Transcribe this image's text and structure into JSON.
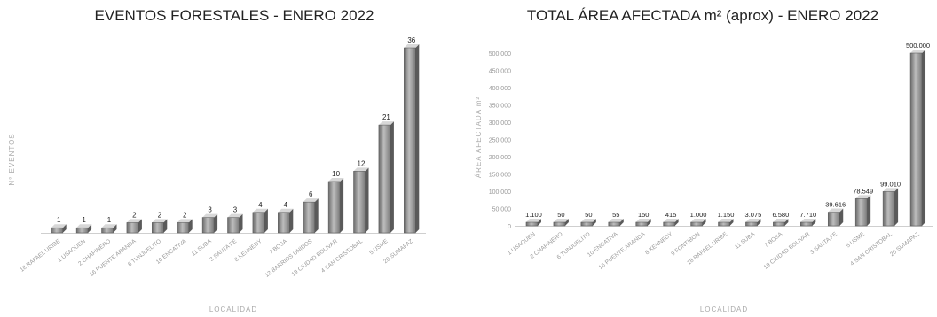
{
  "chart_data": [
    {
      "type": "bar",
      "title": "EVENTOS FORESTALES - ENERO 2022",
      "xlabel": "LOCALIDAD",
      "ylabel": "N° EVENTOS",
      "categories": [
        "18 RAFAEL URIBE",
        "1 USAQUEN",
        "2 CHAPINERO",
        "16 PUENTE ARANDA",
        "6 TUNJUELITO",
        "10 ENGATIVA",
        "11 SUBA",
        "3 SANTA FE",
        "8 KENNEDY",
        "7 BOSA",
        "12 BARRIOS UNIDOS",
        "19 CIUDAD BOLIVAR",
        "4 SAN CRISTOBAL",
        "5 USME",
        "20 SUMAPAZ"
      ],
      "values": [
        1,
        1,
        1,
        2,
        2,
        2,
        3,
        3,
        4,
        4,
        6,
        10,
        12,
        21,
        36
      ],
      "ylim": [
        0,
        36
      ],
      "grid": false
    },
    {
      "type": "bar",
      "title": "TOTAL ÁREA AFECTADA m² (aprox) - ENERO 2022",
      "xlabel": "LOCALIDAD",
      "ylabel": "ÁREA AFECTADA m²",
      "categories": [
        "1 USAQUEN",
        "2 CHAPINERO",
        "6 TUNJUELITO",
        "10 ENGATIVA",
        "16 PUENTE ARANDA",
        "8 KENNEDY",
        "9 FONTIBON",
        "18 RAFAEL URIBE",
        "11 SUBA",
        "7 BOSA",
        "19 CIUDAD BOLIVAR",
        "3 SANTA FE",
        "5 USME",
        "4 SAN CRISTOBAL",
        "20 SUMAPAZ"
      ],
      "values": [
        1100,
        50,
        50,
        55,
        150,
        415,
        1000,
        1150,
        3075,
        6580,
        7710,
        39616,
        78549,
        99010,
        500000
      ],
      "value_labels": [
        "1.100",
        "50",
        "50",
        "55",
        "150",
        "415",
        "1.000",
        "1.150",
        "3.075",
        "6.580",
        "7.710",
        "39.616",
        "78.549",
        "99.010",
        "500.000"
      ],
      "yticks": [
        0,
        50000,
        100000,
        150000,
        200000,
        250000,
        300000,
        350000,
        400000,
        450000,
        500000
      ],
      "ytick_labels": [
        "0",
        "50.000",
        "100.000",
        "150.000",
        "200.000",
        "250.000",
        "300.000",
        "350.000",
        "400.000",
        "450.000",
        "500.000"
      ],
      "ylim": [
        0,
        500000
      ],
      "grid": false
    }
  ]
}
